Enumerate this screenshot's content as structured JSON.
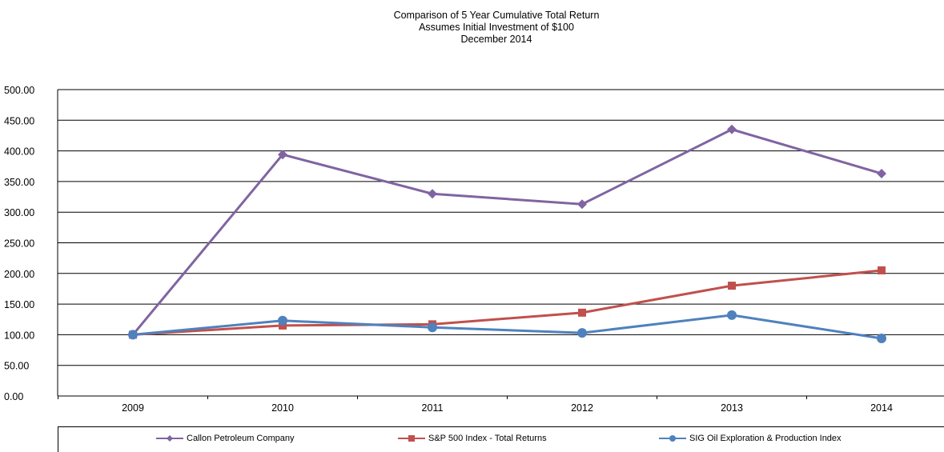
{
  "chart_data": {
    "type": "line",
    "title": "Comparison  of 5 Year Cumulative  Total Return",
    "subtitle": "Assumes Initial Investment  of $100",
    "subtitle2": "December  2014",
    "categories": [
      "2009",
      "2010",
      "2011",
      "2012",
      "2013",
      "2014"
    ],
    "ylim": [
      0,
      500
    ],
    "yticks": [
      "0.00",
      "50.00",
      "100.00",
      "150.00",
      "200.00",
      "250.00",
      "300.00",
      "350.00",
      "400.00",
      "450.00",
      "500.00"
    ],
    "grid": true,
    "legend_position": "bottom",
    "series": [
      {
        "name": "Callon Petroleum Company",
        "color": "#8064A2",
        "marker": "diamond",
        "values": [
          100,
          394,
          330,
          313,
          435,
          363
        ]
      },
      {
        "name": "S&P 500 Index - Total Returns",
        "color": "#C0504D",
        "marker": "square",
        "values": [
          100,
          115,
          117,
          136,
          180,
          205
        ]
      },
      {
        "name": "SIG Oil Exploration & Production Index",
        "color": "#4F81BD",
        "marker": "circle",
        "values": [
          100,
          123,
          112,
          103,
          132,
          94
        ]
      }
    ]
  }
}
